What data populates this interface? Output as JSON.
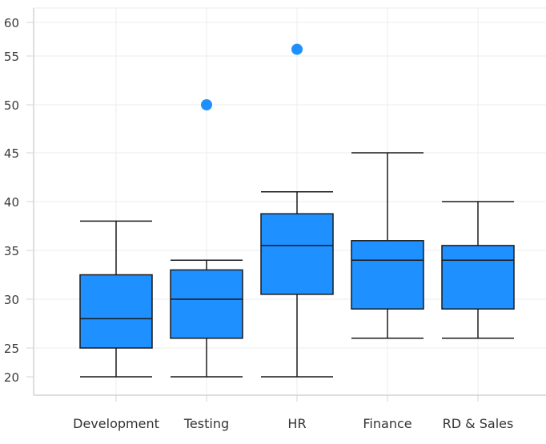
{
  "chart_data": {
    "type": "box",
    "title": "",
    "xlabel": "",
    "ylabel": "",
    "ylim": [
      20,
      60
    ],
    "y_ticks": [
      20,
      25,
      30,
      35,
      40,
      45,
      50,
      55,
      60
    ],
    "grid": true,
    "legend": "none",
    "categories": [
      "Development",
      "Testing",
      "HR",
      "Finance",
      "RD & Sales"
    ],
    "boxes": [
      {
        "category": "Development",
        "min": 22,
        "q1": 25,
        "median": 28,
        "q3": 32.5,
        "max": 38,
        "outliers": []
      },
      {
        "category": "Testing",
        "min": 22,
        "q1": 26,
        "median": 30,
        "q3": 33,
        "max": 34,
        "outliers": [
          50
        ]
      },
      {
        "category": "HR",
        "min": 22,
        "q1": 30.5,
        "median": 35.5,
        "q3": 38.75,
        "max": 41,
        "outliers": [
          56
        ]
      },
      {
        "category": "Finance",
        "min": 26,
        "q1": 29,
        "median": 34,
        "q3": 36,
        "max": 45,
        "outliers": []
      },
      {
        "category": "RD & Sales",
        "min": 26,
        "q1": 29,
        "median": 34,
        "q3": 35.5,
        "max": 40,
        "outliers": []
      }
    ],
    "colors": {
      "box_fill": "#1E90FF",
      "box_stroke": "#1a1a1a",
      "outlier": "#1E90FF",
      "grid": "#ececec",
      "axis": "#d4d4d4"
    }
  }
}
